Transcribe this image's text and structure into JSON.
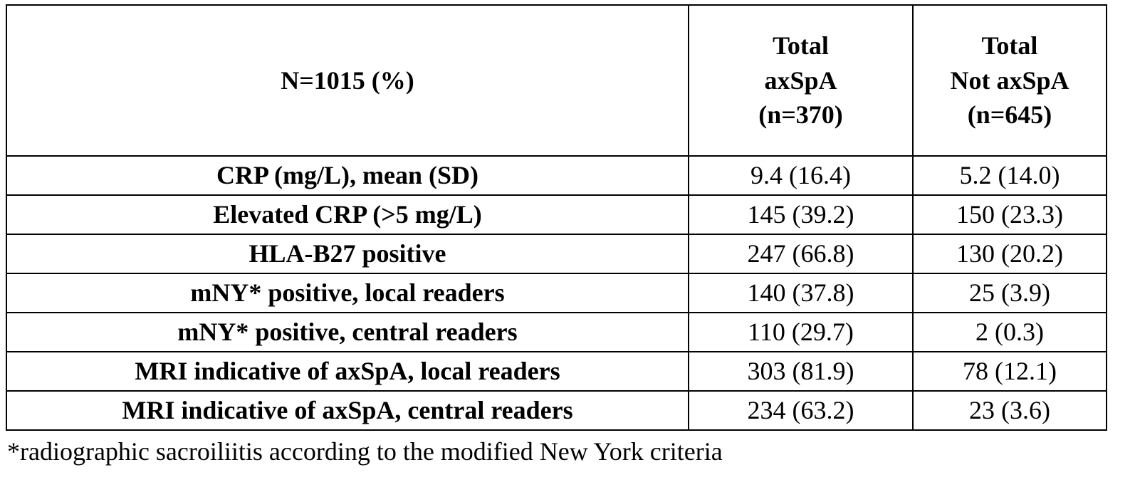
{
  "table": {
    "header": {
      "characteristic": "N=1015 (%)",
      "total_axspa": "Total\naxSpA\n(n=370)",
      "total_not_axspa": "Total\nNot axSpA\n(n=645)"
    },
    "rows": [
      {
        "label": "CRP (mg/L), mean (SD)",
        "axspa": "9.4 (16.4)",
        "not_axspa": "5.2 (14.0)"
      },
      {
        "label": "Elevated CRP (>5 mg/L)",
        "axspa": "145 (39.2)",
        "not_axspa": "150 (23.3)"
      },
      {
        "label": "HLA-B27 positive",
        "axspa": "247 (66.8)",
        "not_axspa": "130 (20.2)"
      },
      {
        "label": "mNY* positive, local readers",
        "axspa": "140 (37.8)",
        "not_axspa": "25 (3.9)"
      },
      {
        "label": "mNY* positive, central readers",
        "axspa": "110 (29.7)",
        "not_axspa": "2 (0.3)"
      },
      {
        "label": "MRI indicative of axSpA, local readers",
        "axspa": "303 (81.9)",
        "not_axspa": "78 (12.1)"
      },
      {
        "label": "MRI indicative of axSpA, central readers",
        "axspa": "234 (63.2)",
        "not_axspa": "23 (3.6)"
      }
    ],
    "footnote": "*radiographic sacroiliitis according to the modified New York criteria"
  },
  "colors": {
    "border": "#000000",
    "text": "#000000",
    "background": "#ffffff"
  },
  "chart_data": {
    "type": "table",
    "title": "N=1015 (%)",
    "columns": [
      "N=1015 (%)",
      "Total axSpA (n=370)",
      "Total Not axSpA (n=645)"
    ],
    "rows": [
      [
        "CRP (mg/L), mean (SD)",
        "9.4 (16.4)",
        "5.2 (14.0)"
      ],
      [
        "Elevated CRP (>5 mg/L)",
        "145 (39.2)",
        "150 (23.3)"
      ],
      [
        "HLA-B27 positive",
        "247 (66.8)",
        "130 (20.2)"
      ],
      [
        "mNY* positive, local readers",
        "140 (37.8)",
        "25 (3.9)"
      ],
      [
        "mNY* positive, central readers",
        "110 (29.7)",
        "2 (0.3)"
      ],
      [
        "MRI indicative of axSpA, local readers",
        "303 (81.9)",
        "78 (12.1)"
      ],
      [
        "MRI indicative of axSpA, central readers",
        "234 (63.2)",
        "23 (3.6)"
      ]
    ],
    "footnote": "*radiographic sacroiliitis according to the modified New York criteria"
  }
}
